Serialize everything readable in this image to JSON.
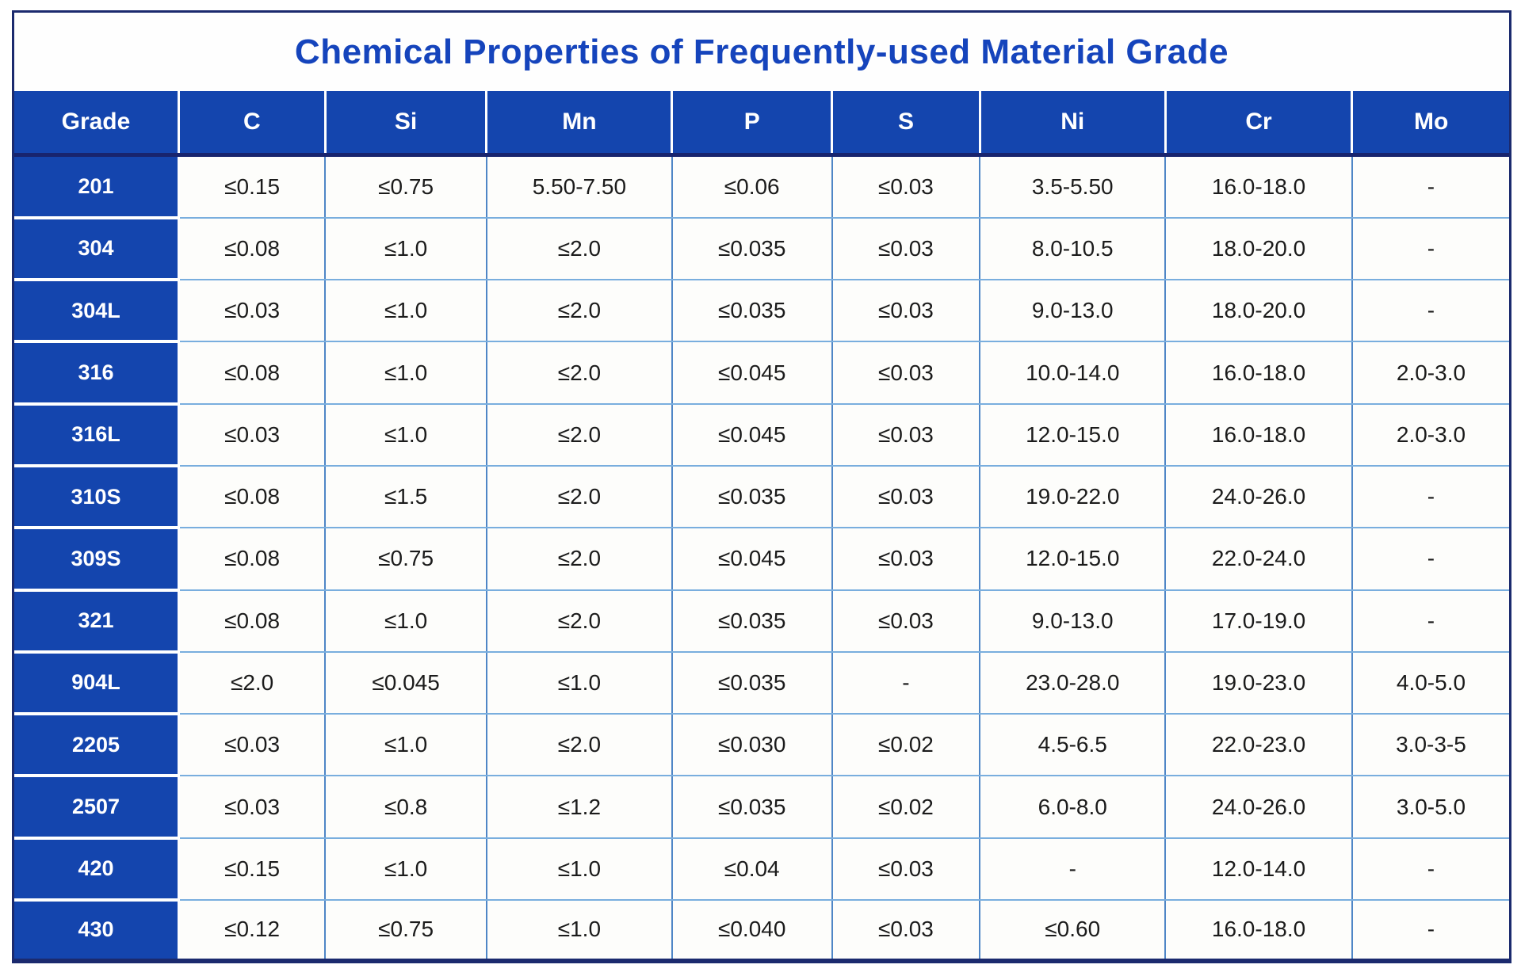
{
  "colors": {
    "header_background": "#1445ae",
    "grade_column_background": "#1445ae",
    "title_text": "#1544bc",
    "outer_border": "#1b2a6e",
    "grid_line_vertical": "#4f86c6",
    "grid_line_horizontal": "#79aede",
    "cell_text": "#1b1b1b",
    "header_text": "#ffffff"
  },
  "table": {
    "title": "Chemical Properties of Frequently-used Material Grade",
    "columns": [
      "Grade",
      "C",
      "Si",
      "Mn",
      "P",
      "S",
      "Ni",
      "Cr",
      "Mo"
    ],
    "rows": [
      {
        "grade": "201",
        "values": [
          "≤0.15",
          "≤0.75",
          "5.50-7.50",
          "≤0.06",
          "≤0.03",
          "3.5-5.50",
          "16.0-18.0",
          "-"
        ]
      },
      {
        "grade": "304",
        "values": [
          "≤0.08",
          "≤1.0",
          "≤2.0",
          "≤0.035",
          "≤0.03",
          "8.0-10.5",
          "18.0-20.0",
          "-"
        ]
      },
      {
        "grade": "304L",
        "values": [
          "≤0.03",
          "≤1.0",
          "≤2.0",
          "≤0.035",
          "≤0.03",
          "9.0-13.0",
          "18.0-20.0",
          "-"
        ]
      },
      {
        "grade": "316",
        "values": [
          "≤0.08",
          "≤1.0",
          "≤2.0",
          "≤0.045",
          "≤0.03",
          "10.0-14.0",
          "16.0-18.0",
          "2.0-3.0"
        ]
      },
      {
        "grade": "316L",
        "values": [
          "≤0.03",
          "≤1.0",
          "≤2.0",
          "≤0.045",
          "≤0.03",
          "12.0-15.0",
          "16.0-18.0",
          "2.0-3.0"
        ]
      },
      {
        "grade": "310S",
        "values": [
          "≤0.08",
          "≤1.5",
          "≤2.0",
          "≤0.035",
          "≤0.03",
          "19.0-22.0",
          "24.0-26.0",
          "-"
        ]
      },
      {
        "grade": "309S",
        "values": [
          "≤0.08",
          "≤0.75",
          "≤2.0",
          "≤0.045",
          "≤0.03",
          "12.0-15.0",
          "22.0-24.0",
          "-"
        ]
      },
      {
        "grade": "321",
        "values": [
          "≤0.08",
          "≤1.0",
          "≤2.0",
          "≤0.035",
          "≤0.03",
          "9.0-13.0",
          "17.0-19.0",
          "-"
        ]
      },
      {
        "grade": "904L",
        "values": [
          "≤2.0",
          "≤0.045",
          "≤1.0",
          "≤0.035",
          "-",
          "23.0-28.0",
          "19.0-23.0",
          "4.0-5.0"
        ]
      },
      {
        "grade": "2205",
        "values": [
          "≤0.03",
          "≤1.0",
          "≤2.0",
          "≤0.030",
          "≤0.02",
          "4.5-6.5",
          "22.0-23.0",
          "3.0-3-5"
        ]
      },
      {
        "grade": "2507",
        "values": [
          "≤0.03",
          "≤0.8",
          "≤1.2",
          "≤0.035",
          "≤0.02",
          "6.0-8.0",
          "24.0-26.0",
          "3.0-5.0"
        ]
      },
      {
        "grade": "420",
        "values": [
          "≤0.15",
          "≤1.0",
          "≤1.0",
          "≤0.04",
          "≤0.03",
          "-",
          "12.0-14.0",
          "-"
        ]
      },
      {
        "grade": "430",
        "values": [
          "≤0.12",
          "≤0.75",
          "≤1.0",
          "≤0.040",
          "≤0.03",
          "≤0.60",
          "16.0-18.0",
          "-"
        ]
      }
    ]
  }
}
